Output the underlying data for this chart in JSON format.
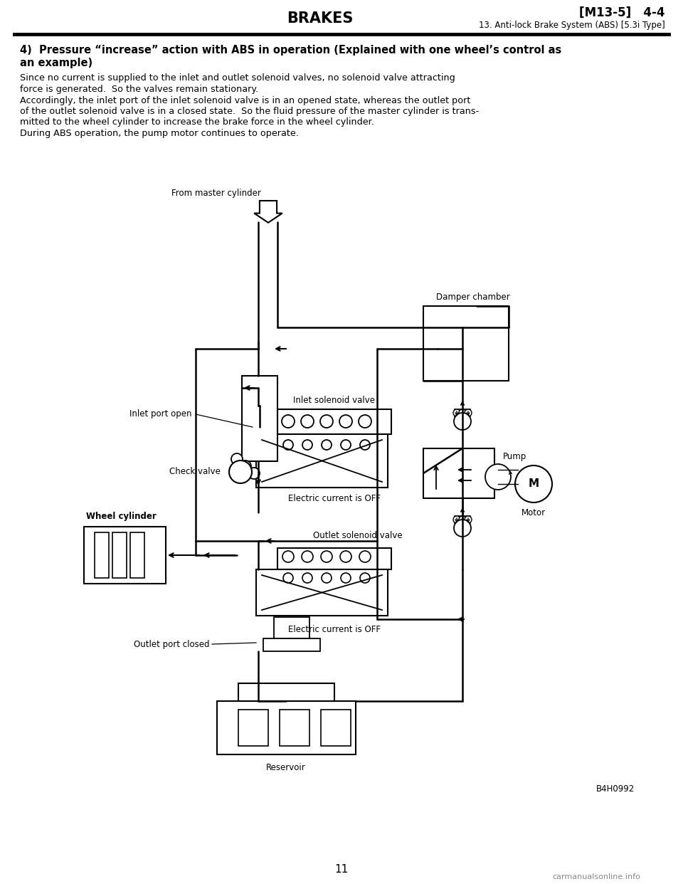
{
  "page_bg": "#ffffff",
  "header_title": "BRAKES",
  "header_right1": "[M13-5]   4-4",
  "header_right2": "13. Anti-lock Brake System (ABS) [5.3i Type]",
  "section_title_line1": "4)  Pressure “increase” action with ABS in operation (Explained with one wheel’s control as",
  "section_title_line2": "an example)",
  "body_text": [
    "Since no current is supplied to the inlet and outlet solenoid valves, no solenoid valve attracting",
    "force is generated.  So the valves remain stationary.",
    "Accordingly, the inlet port of the inlet solenoid valve is in an opened state, whereas the outlet port",
    "of the outlet solenoid valve is in a closed state.  So the fluid pressure of the master cylinder is trans-",
    "mitted to the wheel cylinder to increase the brake force in the wheel cylinder.",
    "During ABS operation, the pump motor continues to operate."
  ],
  "footer_center": "11",
  "footer_watermark": "carmanualsonline.info",
  "ref_code": "B4H0992",
  "labels": {
    "from_master": "From master cylinder",
    "damper": "Damper chamber",
    "inlet_port": "Inlet port open",
    "inlet_solenoid": "Inlet solenoid valve",
    "electric_off1": "Electric current is OFF",
    "check_valve": "Check valve",
    "wheel_cyl": "Wheel cylinder",
    "outlet_solenoid": "Outlet solenoid valve",
    "electric_off2": "Electric current is OFF",
    "outlet_port": "Outlet port closed",
    "reservoir": "Reservoir",
    "pump": "Pump",
    "motor": "Motor"
  }
}
